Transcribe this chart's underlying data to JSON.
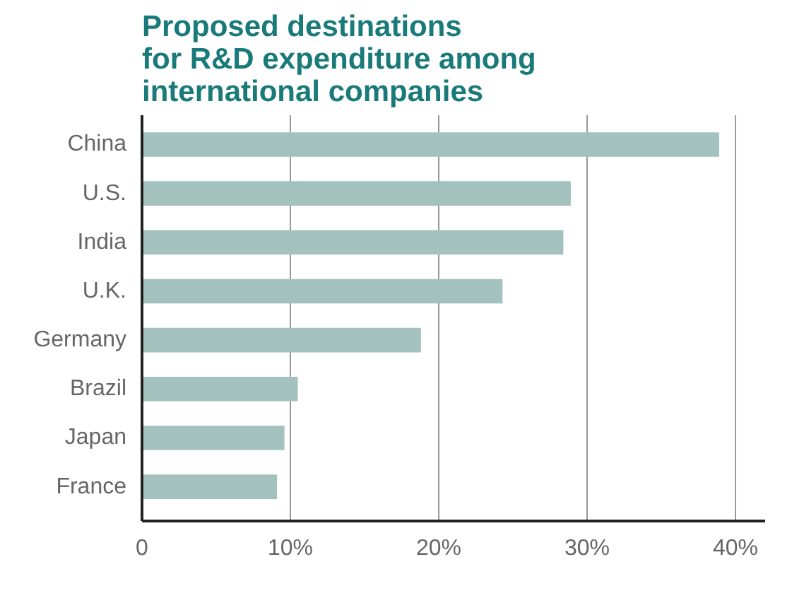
{
  "chart_data": {
    "type": "bar",
    "orientation": "horizontal",
    "title": "Proposed destinations\nfor R&D expenditure among\ninternational companies",
    "categories": [
      "China",
      "U.S.",
      "India",
      "U.K.",
      "Germany",
      "Brazil",
      "Japan",
      "France"
    ],
    "values": [
      38.9,
      28.9,
      28.4,
      24.3,
      18.8,
      10.5,
      9.6,
      9.1
    ],
    "color": "#a3c2be",
    "xlim": [
      0,
      42
    ],
    "xticks": [
      0,
      {
        "value": 10,
        "label": "10%"
      },
      {
        "value": 20,
        "label": "20%"
      },
      {
        "value": 30,
        "label": "30%"
      },
      {
        "value": 40,
        "label": "40%"
      }
    ],
    "grid": "x"
  }
}
